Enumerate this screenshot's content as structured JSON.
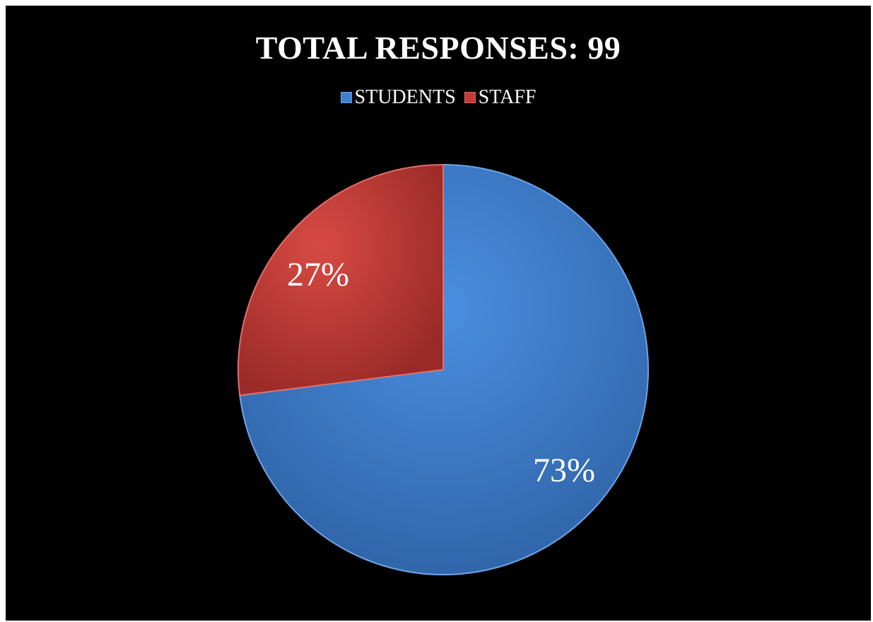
{
  "chart_data": {
    "type": "pie",
    "title": "TOTAL RESPONSES: 99",
    "categories": [
      "STUDENTS",
      "STAFF"
    ],
    "values": [
      73,
      27
    ],
    "data_labels": [
      "73%",
      "27%"
    ],
    "colors": [
      "#3f7fd0",
      "#c43a36"
    ],
    "legend_position": "top",
    "background": "#000000"
  }
}
